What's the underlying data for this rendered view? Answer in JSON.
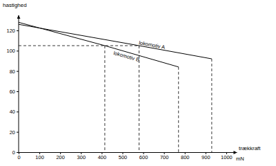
{
  "chart_data": {
    "type": "line",
    "ylabel": "hastighed",
    "xlabel": "trækkraft",
    "x_unit": "mN",
    "xlim": [
      0,
      1050
    ],
    "ylim": [
      0,
      135
    ],
    "xticks": [
      0,
      100,
      200,
      300,
      400,
      500,
      600,
      700,
      800,
      900,
      1000
    ],
    "yticks": [
      0,
      20,
      40,
      60,
      80,
      100,
      120
    ],
    "grid": false,
    "series": [
      {
        "name": "lokomotiv A",
        "color": "#000000",
        "line_style": "solid",
        "x": [
          0,
          580,
          930
        ],
        "values": [
          126,
          105,
          92
        ]
      },
      {
        "name": "lokomotiv B",
        "color": "#000000",
        "line_style": "solid",
        "x": [
          0,
          415,
          770
        ],
        "values": [
          128,
          105,
          84
        ]
      },
      {
        "color": "#000000",
        "line_style": "dashed",
        "x": [
          0,
          580
        ],
        "values": [
          105,
          105
        ]
      },
      {
        "color": "#000000",
        "line_style": "dashed",
        "x": [
          415,
          415
        ],
        "values": [
          105,
          0
        ]
      },
      {
        "color": "#000000",
        "line_style": "dashed",
        "x": [
          580,
          580
        ],
        "values": [
          105,
          0
        ]
      },
      {
        "color": "#000000",
        "line_style": "dashed",
        "x": [
          770,
          770
        ],
        "values": [
          84,
          0
        ]
      },
      {
        "color": "#000000",
        "line_style": "dashed",
        "x": [
          930,
          930
        ],
        "values": [
          92,
          0
        ]
      }
    ]
  }
}
